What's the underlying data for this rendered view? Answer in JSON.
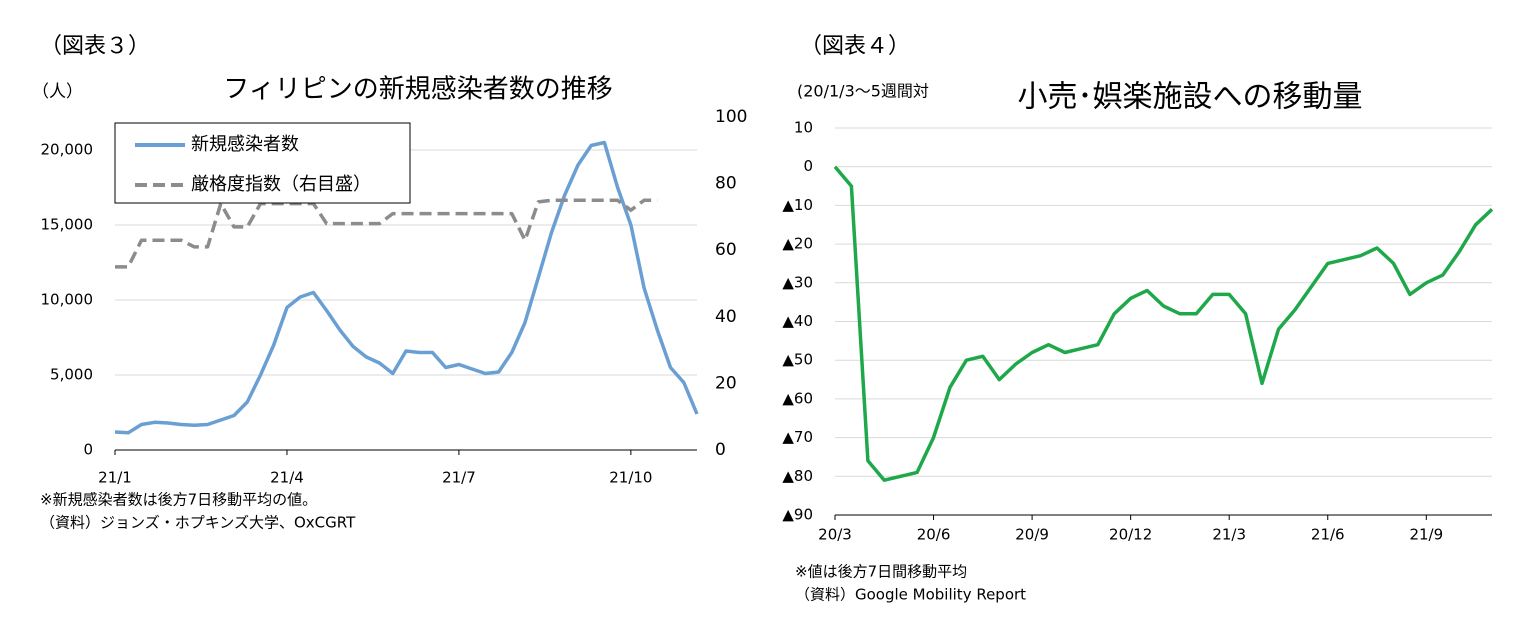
{
  "chart_data": [
    {
      "type": "line",
      "label": "（図表３）",
      "title": "フィリピンの新規感染者数の推移",
      "y_label": "（人）",
      "categories": [
        "21/1",
        null,
        null,
        null,
        null,
        null,
        null,
        null,
        null,
        null,
        null,
        null,
        null,
        "21/4",
        null,
        null,
        null,
        null,
        null,
        null,
        null,
        null,
        null,
        null,
        null,
        null,
        "21/7",
        null,
        null,
        null,
        null,
        null,
        null,
        null,
        null,
        null,
        null,
        null,
        null,
        "21/10",
        null,
        null,
        null,
        null,
        null
      ],
      "series": [
        {
          "name": "新規感染者数",
          "color": "#6a9fd4",
          "values": [
            1200,
            1150,
            1700,
            1850,
            1800,
            1700,
            1650,
            1700,
            2000,
            2300,
            3200,
            5000,
            7000,
            9500,
            10200,
            10500,
            9300,
            8000,
            6900,
            6200,
            5800,
            5100,
            6600,
            6500,
            6500,
            5500,
            5700,
            5400,
            5100,
            5200,
            6500,
            8500,
            11500,
            14500,
            17000,
            19000,
            20300,
            20500,
            17500,
            15000,
            10800,
            8000,
            5500,
            4500,
            2400
          ]
        },
        {
          "name": "厳格度指数（右目盛）",
          "color": "#8c8c8c",
          "dashed": true,
          "axis": "y2",
          "values": [
            55,
            55,
            63,
            63,
            63,
            63,
            61,
            61,
            74,
            67,
            67,
            74,
            74,
            74,
            74,
            74,
            68,
            68,
            68,
            68,
            68,
            71,
            71,
            71,
            71,
            71,
            71,
            71,
            71,
            71,
            71,
            63,
            74.5,
            75,
            75,
            75,
            75,
            75,
            75,
            72,
            75,
            75,
            null,
            null,
            null
          ]
        }
      ],
      "ylim": [
        0,
        22200
      ],
      "yticks": [
        0,
        {
          "value": 5000,
          "label": "5,000"
        },
        {
          "value": 10000,
          "label": "10,000"
        },
        {
          "value": 15000,
          "label": "15,000"
        },
        {
          "value": 20000,
          "label": "20,000"
        }
      ],
      "y2lim": [
        0,
        100
      ],
      "y2ticks": [
        0,
        20,
        40,
        60,
        80,
        100
      ],
      "grid": true,
      "legend": "upper left",
      "notes": [
        "※新規感染者数は後方7日移動平均の値。",
        "（資料）ジョンズ・ホプキンズ大学、OxCGRT"
      ]
    },
    {
      "type": "line",
      "label": "（図表４）",
      "title": "小売･娯楽施設への移動量",
      "y_label": "(20/1/3～5週間対",
      "categories": [
        "20/3",
        null,
        null,
        null,
        null,
        null,
        "20/6",
        null,
        null,
        null,
        null,
        null,
        "20/9",
        null,
        null,
        null,
        null,
        null,
        "20/12",
        null,
        null,
        null,
        null,
        null,
        "21/3",
        null,
        null,
        null,
        null,
        null,
        "21/6",
        null,
        null,
        null,
        null,
        null,
        "21/9",
        null,
        null,
        null,
        null
      ],
      "values": [
        0,
        -5,
        -76,
        -81,
        -80,
        -79,
        -70,
        -57,
        -50,
        -49,
        -55,
        -51,
        -48,
        -46,
        -48,
        -47,
        -46,
        -38,
        -34,
        -32,
        -36,
        -38,
        -38,
        -33,
        -33,
        -38,
        -56,
        -42,
        -37,
        -31,
        -25,
        -24,
        -23,
        -21,
        -25,
        -33,
        -30,
        -28,
        -22,
        -15,
        -11
      ],
      "color": "#1fa84a",
      "ylim": [
        -90,
        10
      ],
      "yticks": [
        {
          "value": -90,
          "label": "▲90"
        },
        {
          "value": -80,
          "label": "▲80"
        },
        {
          "value": -70,
          "label": "▲70"
        },
        {
          "value": -60,
          "label": "▲60"
        },
        {
          "value": -50,
          "label": "▲50"
        },
        {
          "value": -40,
          "label": "▲40"
        },
        {
          "value": -30,
          "label": "▲30"
        },
        {
          "value": -20,
          "label": "▲20"
        },
        {
          "value": -10,
          "label": "▲10"
        },
        0,
        10
      ],
      "grid": true,
      "notes": [
        "※値は後方7日間移動平均",
        "（資料）Google Mobility Report"
      ]
    }
  ]
}
